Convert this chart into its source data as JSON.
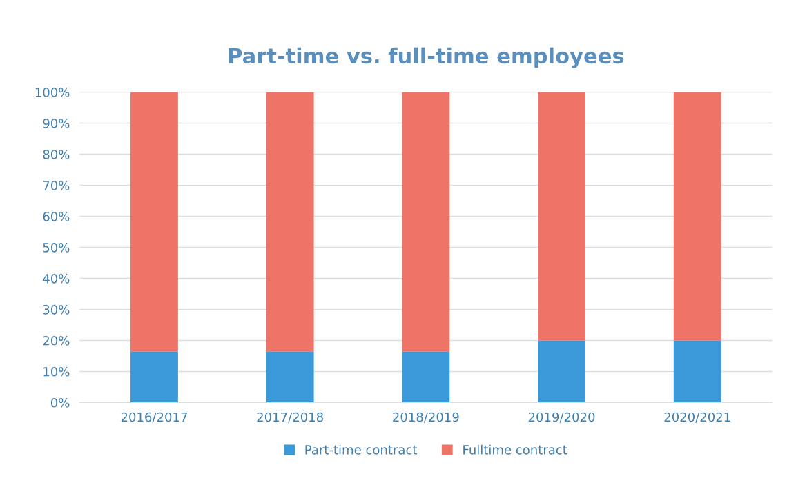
{
  "chart_data": {
    "type": "bar",
    "title": "Part-time vs. full-time employees",
    "categories": [
      "2016/2017",
      "2017/2018",
      "2018/2019",
      "2019/2020",
      "2020/2021"
    ],
    "stacked": true,
    "series": [
      {
        "name": "Part-time contract",
        "color": "#3a9ad9",
        "values": [
          16.5,
          16.5,
          16.5,
          20,
          20
        ]
      },
      {
        "name": "Fulltime contract",
        "color": "#ee7467",
        "values": [
          83.5,
          83.5,
          83.5,
          80,
          80
        ]
      }
    ],
    "ylim": [
      0,
      100
    ],
    "yticks": [
      {
        "value": 0,
        "label": "0%"
      },
      {
        "value": 10,
        "label": "10%"
      },
      {
        "value": 20,
        "label": "20%"
      },
      {
        "value": 30,
        "label": "30%"
      },
      {
        "value": 40,
        "label": "40%"
      },
      {
        "value": 50,
        "label": "50%"
      },
      {
        "value": 60,
        "label": "60%"
      },
      {
        "value": 70,
        "label": "70%"
      },
      {
        "value": 80,
        "label": "80%"
      },
      {
        "value": 90,
        "label": "90%"
      },
      {
        "value": 100,
        "label": "100%"
      }
    ],
    "grid": "y",
    "legend": "bottom"
  }
}
